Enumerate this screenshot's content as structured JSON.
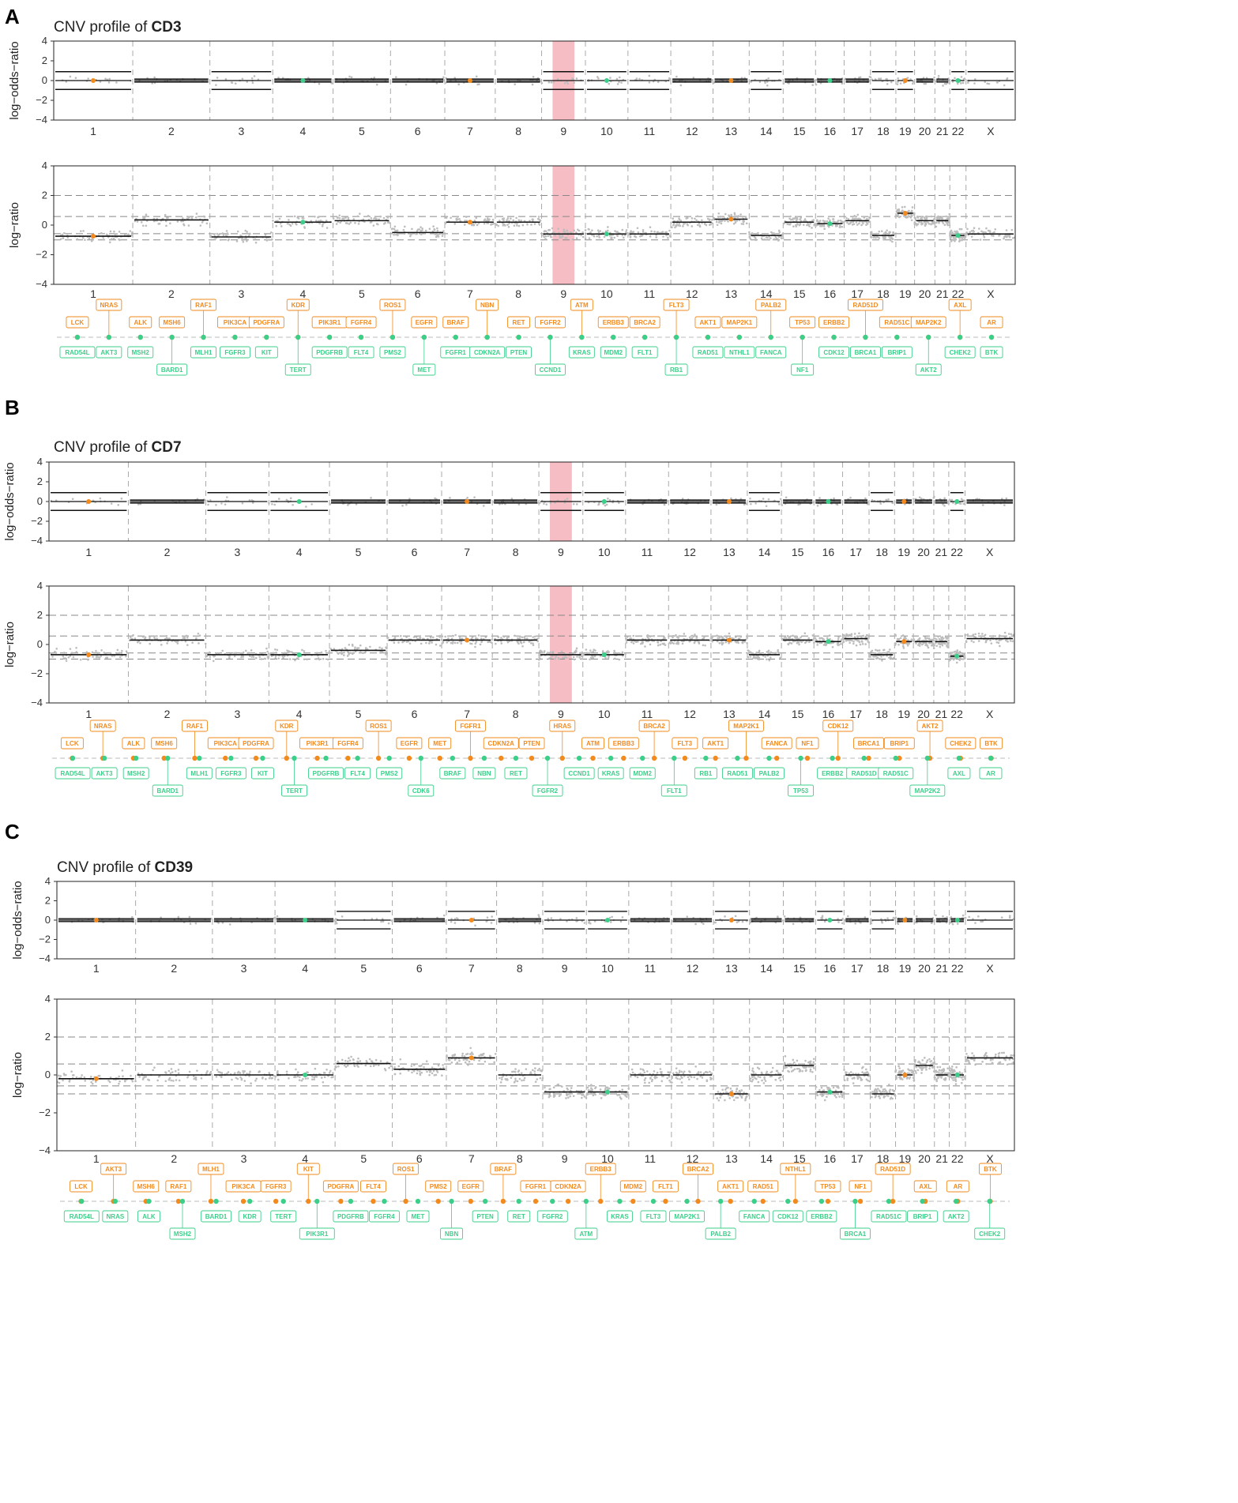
{
  "figure": {
    "colors": {
      "amplified": "#f28a1e",
      "deleted": "#3ccf8a",
      "highlight": "#f4a7b0",
      "points": "#bdbdbd",
      "segments": "#111111"
    }
  },
  "chart_data": [
    {
      "panel": "A",
      "type": "scatter",
      "title_prefix": "CNV profile of",
      "title_sample": "CD3",
      "highlight_chromosome": "9",
      "chromosomes": [
        "1",
        "2",
        "3",
        "4",
        "5",
        "6",
        "7",
        "8",
        "9",
        "10",
        "11",
        "12",
        "13",
        "14",
        "15",
        "16",
        "17",
        "18",
        "19",
        "20",
        "21",
        "22",
        "X"
      ],
      "top_plot": {
        "ylabel": "log−odds−ratio",
        "ylim": [
          -4,
          4
        ],
        "yticks": [
          "4",
          "2",
          "0",
          "−2",
          "−4"
        ]
      },
      "bottom_plot": {
        "ylabel": "log−ratio",
        "ylim": [
          -4,
          4
        ],
        "yticks": [
          "4",
          "2",
          "0",
          "−2",
          "−4"
        ],
        "reference_lines": [
          2,
          0.58,
          -0.58,
          -1
        ]
      },
      "segments_logratio": [
        -0.75,
        0.35,
        -0.8,
        0.2,
        0.3,
        -0.5,
        0.2,
        0.2,
        -0.6,
        -0.6,
        -0.6,
        0.2,
        0.4,
        -0.7,
        0.2,
        0.1,
        0.3,
        -0.7,
        0.8,
        0.3,
        0.3,
        -0.7,
        -0.6
      ],
      "amplified_genes": [
        "LCK",
        "NRAS",
        "ALK",
        "MSH6",
        "RAF1",
        "PIK3CA",
        "PDGFRA",
        "KDR",
        "PIK3R1",
        "FGFR4",
        "ROS1",
        "EGFR",
        "BRAF",
        "NBN",
        "RET",
        "FGFR2",
        "ATM",
        "ERBB3",
        "BRCA2",
        "FLT3",
        "AKT1",
        "MAP2K1",
        "PALB2",
        "TP53",
        "ERBB2",
        "RAD51D",
        "RAD51C",
        "MAP2K2",
        "AXL",
        "AR"
      ],
      "deleted_genes": [
        "RAD54L",
        "AKT3",
        "MSH2",
        "BARD1",
        "MLH1",
        "FGFR3",
        "KIT",
        "TERT",
        "PDGFRB",
        "FLT4",
        "PMS2",
        "MET",
        "FGFR1",
        "CDKN2A",
        "PTEN",
        "CCND1",
        "KRAS",
        "MDM2",
        "FLT1",
        "RB1",
        "RAD51",
        "NTHL1",
        "FANCA",
        "NF1",
        "CDK12",
        "BRCA1",
        "BRIP1",
        "AKT2",
        "CHEK2",
        "BTK"
      ]
    },
    {
      "panel": "B",
      "type": "scatter",
      "title_prefix": "CNV profile of",
      "title_sample": "CD7",
      "highlight_chromosome": "9",
      "chromosomes": [
        "1",
        "2",
        "3",
        "4",
        "5",
        "6",
        "7",
        "8",
        "9",
        "10",
        "11",
        "12",
        "13",
        "14",
        "15",
        "16",
        "17",
        "18",
        "19",
        "20",
        "21",
        "22",
        "X"
      ],
      "top_plot": {
        "ylabel": "log−odds−ratio",
        "ylim": [
          -4,
          4
        ],
        "yticks": [
          "4",
          "2",
          "0",
          "−2",
          "−4"
        ]
      },
      "bottom_plot": {
        "ylabel": "log−ratio",
        "ylim": [
          -4,
          4
        ],
        "yticks": [
          "4",
          "2",
          "0",
          "−2",
          "−4"
        ],
        "reference_lines": [
          2,
          0.58,
          -0.58,
          -1
        ]
      },
      "segments_logratio": [
        -0.7,
        0.3,
        -0.7,
        -0.7,
        -0.4,
        0.3,
        0.3,
        0.3,
        -0.7,
        -0.7,
        0.3,
        0.3,
        0.3,
        -0.7,
        0.3,
        0.2,
        0.4,
        -0.7,
        0.2,
        0.2,
        0.2,
        -0.8,
        0.4
      ],
      "amplified_genes": [
        "LCK",
        "NRAS",
        "ALK",
        "MSH6",
        "RAF1",
        "PIK3CA",
        "PDGFRA",
        "KDR",
        "PIK3R1",
        "FGFR4",
        "ROS1",
        "EGFR",
        "MET",
        "FGFR1",
        "CDKN2A",
        "PTEN",
        "HRAS",
        "ATM",
        "ERBB3",
        "BRCA2",
        "FLT3",
        "AKT1",
        "MAP2K1",
        "FANCA",
        "NF1",
        "CDK12",
        "BRCA1",
        "BRIP1",
        "AKT2",
        "CHEK2",
        "BTK"
      ],
      "deleted_genes": [
        "RAD54L",
        "AKT3",
        "MSH2",
        "BARD1",
        "MLH1",
        "FGFR3",
        "KIT",
        "TERT",
        "PDGFRB",
        "FLT4",
        "PMS2",
        "CDK6",
        "BRAF",
        "NBN",
        "RET",
        "FGFR2",
        "CCND1",
        "KRAS",
        "MDM2",
        "FLT1",
        "RB1",
        "RAD51",
        "PALB2",
        "TP53",
        "ERBB2",
        "RAD51D",
        "RAD51C",
        "MAP2K2",
        "AXL",
        "AR"
      ]
    },
    {
      "panel": "C",
      "type": "scatter",
      "title_prefix": "CNV profile of",
      "title_sample": "CD39",
      "highlight_chromosome": null,
      "chromosomes": [
        "1",
        "2",
        "3",
        "4",
        "5",
        "6",
        "7",
        "8",
        "9",
        "10",
        "11",
        "12",
        "13",
        "14",
        "15",
        "16",
        "17",
        "18",
        "19",
        "20",
        "21",
        "22",
        "X"
      ],
      "top_plot": {
        "ylabel": "log−odds−ratio",
        "ylim": [
          -4,
          4
        ],
        "yticks": [
          "4",
          "2",
          "0",
          "−2",
          "−4"
        ]
      },
      "bottom_plot": {
        "ylabel": "log−ratio",
        "ylim": [
          -4,
          4
        ],
        "yticks": [
          "4",
          "2",
          "0",
          "−2",
          "−4"
        ],
        "reference_lines": [
          2,
          0.58,
          -0.58,
          -1
        ]
      },
      "segments_logratio": [
        -0.2,
        0.0,
        0.0,
        0.0,
        0.6,
        0.3,
        0.9,
        0.0,
        -0.9,
        -0.9,
        0.0,
        0.0,
        -1.0,
        0.0,
        0.5,
        -0.9,
        0.0,
        -1.0,
        0.0,
        0.5,
        0.0,
        0.0,
        0.9
      ],
      "amplified_genes": [
        "LCK",
        "AKT3",
        "MSH6",
        "RAF1",
        "MLH1",
        "PIK3CA",
        "FGFR3",
        "KIT",
        "PDGFRA",
        "FLT4",
        "ROS1",
        "PMS2",
        "EGFR",
        "BRAF",
        "FGFR1",
        "CDKN2A",
        "ERBB3",
        "MDM2",
        "FLT1",
        "BRCA2",
        "AKT1",
        "RAD51",
        "NTHL1",
        "TP53",
        "NF1",
        "RAD51D",
        "AXL",
        "AR",
        "BTK"
      ],
      "deleted_genes": [
        "RAD54L",
        "NRAS",
        "ALK",
        "MSH2",
        "BARD1",
        "KDR",
        "TERT",
        "PIK3R1",
        "PDGFRB",
        "FGFR4",
        "MET",
        "NBN",
        "PTEN",
        "RET",
        "FGFR2",
        "ATM",
        "KRAS",
        "FLT3",
        "MAP2K1",
        "PALB2",
        "FANCA",
        "CDK12",
        "ERBB2",
        "BRCA1",
        "RAD51C",
        "BRIP1",
        "AKT2",
        "CHEK2"
      ]
    }
  ]
}
